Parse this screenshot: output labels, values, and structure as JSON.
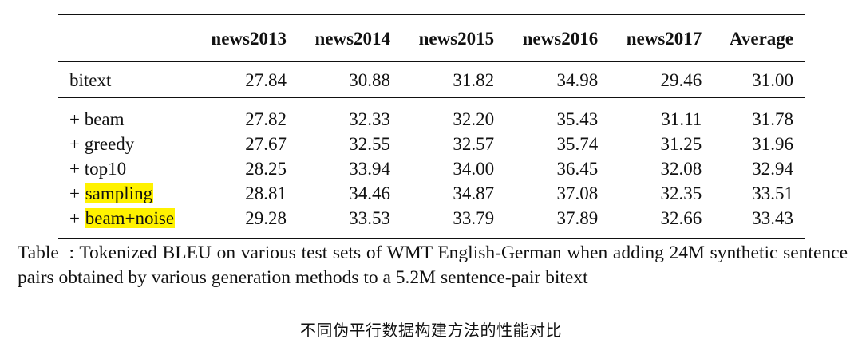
{
  "table": {
    "columns": [
      "",
      "news2013",
      "news2014",
      "news2015",
      "news2016",
      "news2017",
      "Average"
    ],
    "rows": [
      {
        "method": "bitext",
        "values": [
          "27.84",
          "30.88",
          "31.82",
          "34.98",
          "29.46",
          "31.00"
        ]
      },
      {
        "method": "+ beam",
        "values": [
          "27.82",
          "32.33",
          "32.20",
          "35.43",
          "31.11",
          "31.78"
        ]
      },
      {
        "method": "+ greedy",
        "values": [
          "27.67",
          "32.55",
          "32.57",
          "35.74",
          "31.25",
          "31.96"
        ]
      },
      {
        "method": "+ top10",
        "values": [
          "28.25",
          "33.94",
          "34.00",
          "36.45",
          "32.08",
          "32.94"
        ]
      },
      {
        "method_prefix": "+ ",
        "method_highlight": "sampling",
        "values": [
          "28.81",
          "34.46",
          "34.87",
          "37.08",
          "32.35",
          "33.51"
        ]
      },
      {
        "method_prefix": "+ ",
        "method_highlight": "beam+noise",
        "values": [
          "29.28",
          "33.53",
          "33.79",
          "37.89",
          "32.66",
          "33.43"
        ]
      }
    ]
  },
  "highlight_color": "#fff200",
  "caption": {
    "label": "Table",
    "colon": ":",
    "text": "Tokenized BLEU on various test sets of WMT English-German when adding 24M synthetic sentence pairs obtained by various generation methods to a 5.2M sentence-pair bitext"
  },
  "subtitle": "不同伪平行数据构建方法的性能对比"
}
